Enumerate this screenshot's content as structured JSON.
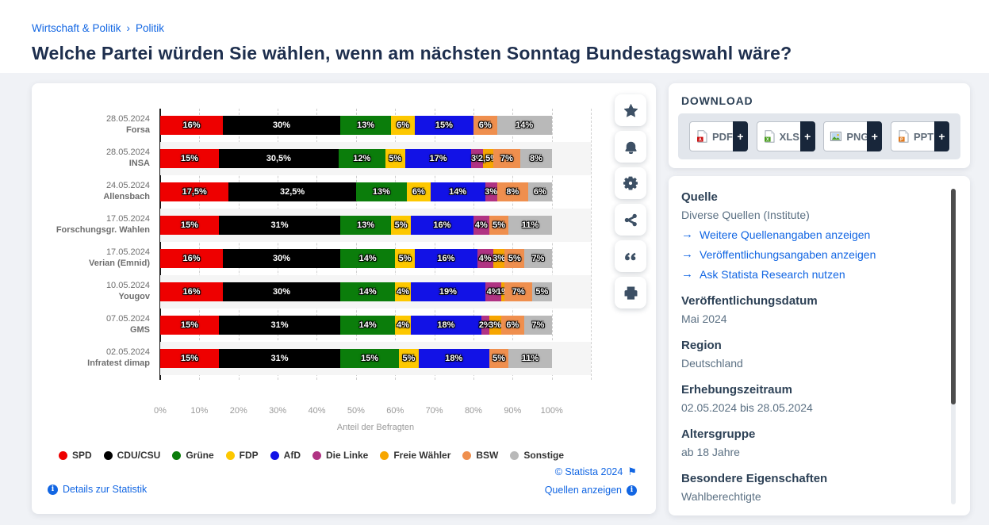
{
  "colors": {
    "link_blue": "#1266e3",
    "heading_navy": "#2d4156",
    "title_navy": "#1e2f4e",
    "value_gray": "#5b7083",
    "toolbar_icon": "#3d5065",
    "stripe_gray": "#f5f5f5"
  },
  "breadcrumb": {
    "items": [
      "Wirtschaft & Politik",
      "Politik"
    ],
    "separator": "›"
  },
  "page_title": "Welche Partei würden Sie wählen, wenn am nächsten Sonntag Bundestagswahl wäre?",
  "toolbar": {
    "buttons": [
      {
        "icon": "star-icon"
      },
      {
        "icon": "bell-icon"
      },
      {
        "icon": "gear-icon"
      },
      {
        "icon": "share-icon"
      },
      {
        "icon": "quote-icon"
      },
      {
        "icon": "printer-icon"
      }
    ]
  },
  "chart_data": {
    "type": "bar",
    "variant": "horizontal-stacked",
    "xlabel": "Anteil der Befragten",
    "x_ticks": [
      "0%",
      "10%",
      "20%",
      "30%",
      "40%",
      "50%",
      "60%",
      "70%",
      "80%",
      "90%",
      "100%"
    ],
    "xlim": [
      0,
      110
    ],
    "grid": "dashed-vertical",
    "legend_position": "bottom",
    "series": [
      {
        "name": "SPD",
        "color": "#ee0000"
      },
      {
        "name": "CDU/CSU",
        "color": "#000000"
      },
      {
        "name": "Grüne",
        "color": "#0b7d0b"
      },
      {
        "name": "FDP",
        "color": "#fdc800"
      },
      {
        "name": "AfD",
        "color": "#1212e6"
      },
      {
        "name": "Die Linke",
        "color": "#b03383"
      },
      {
        "name": "Freie Wähler",
        "color": "#f7a600"
      },
      {
        "name": "BSW",
        "color": "#ef8f4e"
      },
      {
        "name": "Sonstige",
        "color": "#b9b9b9"
      }
    ],
    "rows": [
      {
        "date": "28.05.2024",
        "institute": "Forsa",
        "values": [
          16,
          30,
          13,
          6,
          15,
          0,
          0,
          6,
          14
        ],
        "labels": [
          "16%",
          "30%",
          "13%",
          "6%",
          "15%",
          "",
          "",
          "6%",
          "14%"
        ]
      },
      {
        "date": "28.05.2024",
        "institute": "INSA",
        "values": [
          15,
          30.5,
          12,
          5,
          17,
          3,
          2.5,
          7,
          8
        ],
        "labels": [
          "15%",
          "30,5%",
          "12%",
          "5%",
          "17%",
          "3%",
          "2,5%",
          "7%",
          "8%"
        ]
      },
      {
        "date": "24.05.2024",
        "institute": "Allensbach",
        "values": [
          17.5,
          32.5,
          13,
          6,
          14,
          3,
          0,
          8,
          6
        ],
        "labels": [
          "17,5%",
          "32,5%",
          "13%",
          "6%",
          "14%",
          "3%",
          "",
          "8%",
          "6%"
        ]
      },
      {
        "date": "17.05.2024",
        "institute": "Forschungsgr. Wahlen",
        "values": [
          15,
          31,
          13,
          5,
          16,
          4,
          0,
          5,
          11
        ],
        "labels": [
          "15%",
          "31%",
          "13%",
          "5%",
          "16%",
          "4%",
          "",
          "5%",
          "11%"
        ]
      },
      {
        "date": "17.05.2024",
        "institute": "Verian (Emnid)",
        "values": [
          16,
          30,
          14,
          5,
          16,
          4,
          3,
          5,
          7
        ],
        "labels": [
          "16%",
          "30%",
          "14%",
          "5%",
          "16%",
          "4%",
          "3%",
          "5%",
          "7%"
        ]
      },
      {
        "date": "10.05.2024",
        "institute": "Yougov",
        "values": [
          16,
          30,
          14,
          4,
          19,
          4,
          1,
          7,
          5
        ],
        "labels": [
          "16%",
          "30%",
          "14%",
          "4%",
          "19%",
          "4%",
          "1%",
          "7%",
          "5%"
        ]
      },
      {
        "date": "07.05.2024",
        "institute": "GMS",
        "values": [
          15,
          31,
          14,
          4,
          18,
          2,
          3,
          6,
          7
        ],
        "labels": [
          "15%",
          "31%",
          "14%",
          "4%",
          "18%",
          "2%",
          "3%",
          "6%",
          "7%"
        ]
      },
      {
        "date": "02.05.2024",
        "institute": "Infratest dimap",
        "values": [
          15,
          31,
          15,
          5,
          18,
          0,
          0,
          5,
          11
        ],
        "labels": [
          "15%",
          "31%",
          "15%",
          "5%",
          "18%",
          "",
          "",
          "5%",
          "11%"
        ]
      }
    ]
  },
  "chart_footer": {
    "copyright": "© Statista 2024",
    "flag_icon": "flag-icon",
    "details_link": "Details zur Statistik",
    "sources_link": "Quellen anzeigen"
  },
  "download": {
    "title": "DOWNLOAD",
    "plus": "+",
    "buttons": [
      {
        "label": "PDF",
        "icon": "pdf-file-icon"
      },
      {
        "label": "XLS",
        "icon": "xls-file-icon"
      },
      {
        "label": "PNG",
        "icon": "png-image-icon"
      },
      {
        "label": "PPT",
        "icon": "ppt-file-icon"
      }
    ]
  },
  "details_panel": {
    "sections": [
      {
        "heading": "Quelle",
        "value": "Diverse Quellen (Institute)",
        "links": [
          "Weitere Quellenangaben anzeigen",
          "Veröffentlichungsangaben anzeigen",
          "Ask Statista Research nutzen"
        ],
        "link_arrow": "→"
      },
      {
        "heading": "Veröffentlichungsdatum",
        "value": "Mai 2024"
      },
      {
        "heading": "Region",
        "value": "Deutschland"
      },
      {
        "heading": "Erhebungszeitraum",
        "value": "02.05.2024 bis 28.05.2024"
      },
      {
        "heading": "Altersgruppe",
        "value": "ab 18 Jahre"
      },
      {
        "heading": "Besondere Eigenschaften",
        "value": "Wahlberechtigte"
      }
    ]
  }
}
